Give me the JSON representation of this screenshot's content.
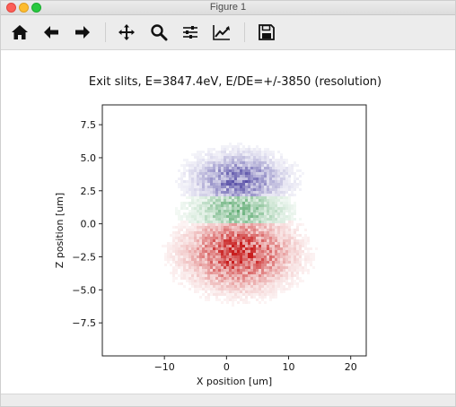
{
  "window": {
    "title": "Figure 1"
  },
  "toolbar": {
    "buttons": [
      {
        "name": "home",
        "icon": "home-icon"
      },
      {
        "name": "back",
        "icon": "arrow-left-icon"
      },
      {
        "name": "forward",
        "icon": "arrow-right-icon"
      },
      {
        "name": "pan",
        "icon": "move-icon"
      },
      {
        "name": "zoom",
        "icon": "magnifier-icon"
      },
      {
        "name": "configure-subplots",
        "icon": "sliders-icon"
      },
      {
        "name": "edit-axis",
        "icon": "line-chart-icon"
      },
      {
        "name": "save",
        "icon": "floppy-disk-icon"
      }
    ]
  },
  "chart_data": {
    "type": "heatmap",
    "title": "Exit slits, E=3847.4eV, E/DE=+/-3850 (resolution)",
    "xlabel": "X position [um]",
    "ylabel": "Z position [um]",
    "xlim": [
      -20,
      22.5
    ],
    "ylim": [
      -10,
      9
    ],
    "xticks": [
      -10,
      0,
      10,
      20
    ],
    "xtick_labels": [
      "−10",
      "0",
      "10",
      "20"
    ],
    "yticks": [
      7.5,
      5.0,
      2.5,
      0.0,
      -2.5,
      -5.0,
      -7.5
    ],
    "ytick_labels": [
      "7.5",
      "5.0",
      "2.5",
      "0.0",
      "−2.5",
      "−5.0",
      "−7.5"
    ],
    "grid": false,
    "clusters": [
      {
        "color": "#2a1f8f",
        "center_x": 2,
        "center_z": 3.3,
        "sigma_x": 4.5,
        "sigma_z": 1.2,
        "relative_density": 0.7
      },
      {
        "color": "#1f8a3a",
        "center_x": 2,
        "center_z": 1.0,
        "sigma_x": 4.5,
        "sigma_z": 1.2,
        "relative_density": 0.6
      },
      {
        "color": "#c81e1e",
        "center_x": 2,
        "center_z": -2.2,
        "sigma_x": 5.0,
        "sigma_z": 1.6,
        "relative_density": 1.0
      }
    ]
  }
}
